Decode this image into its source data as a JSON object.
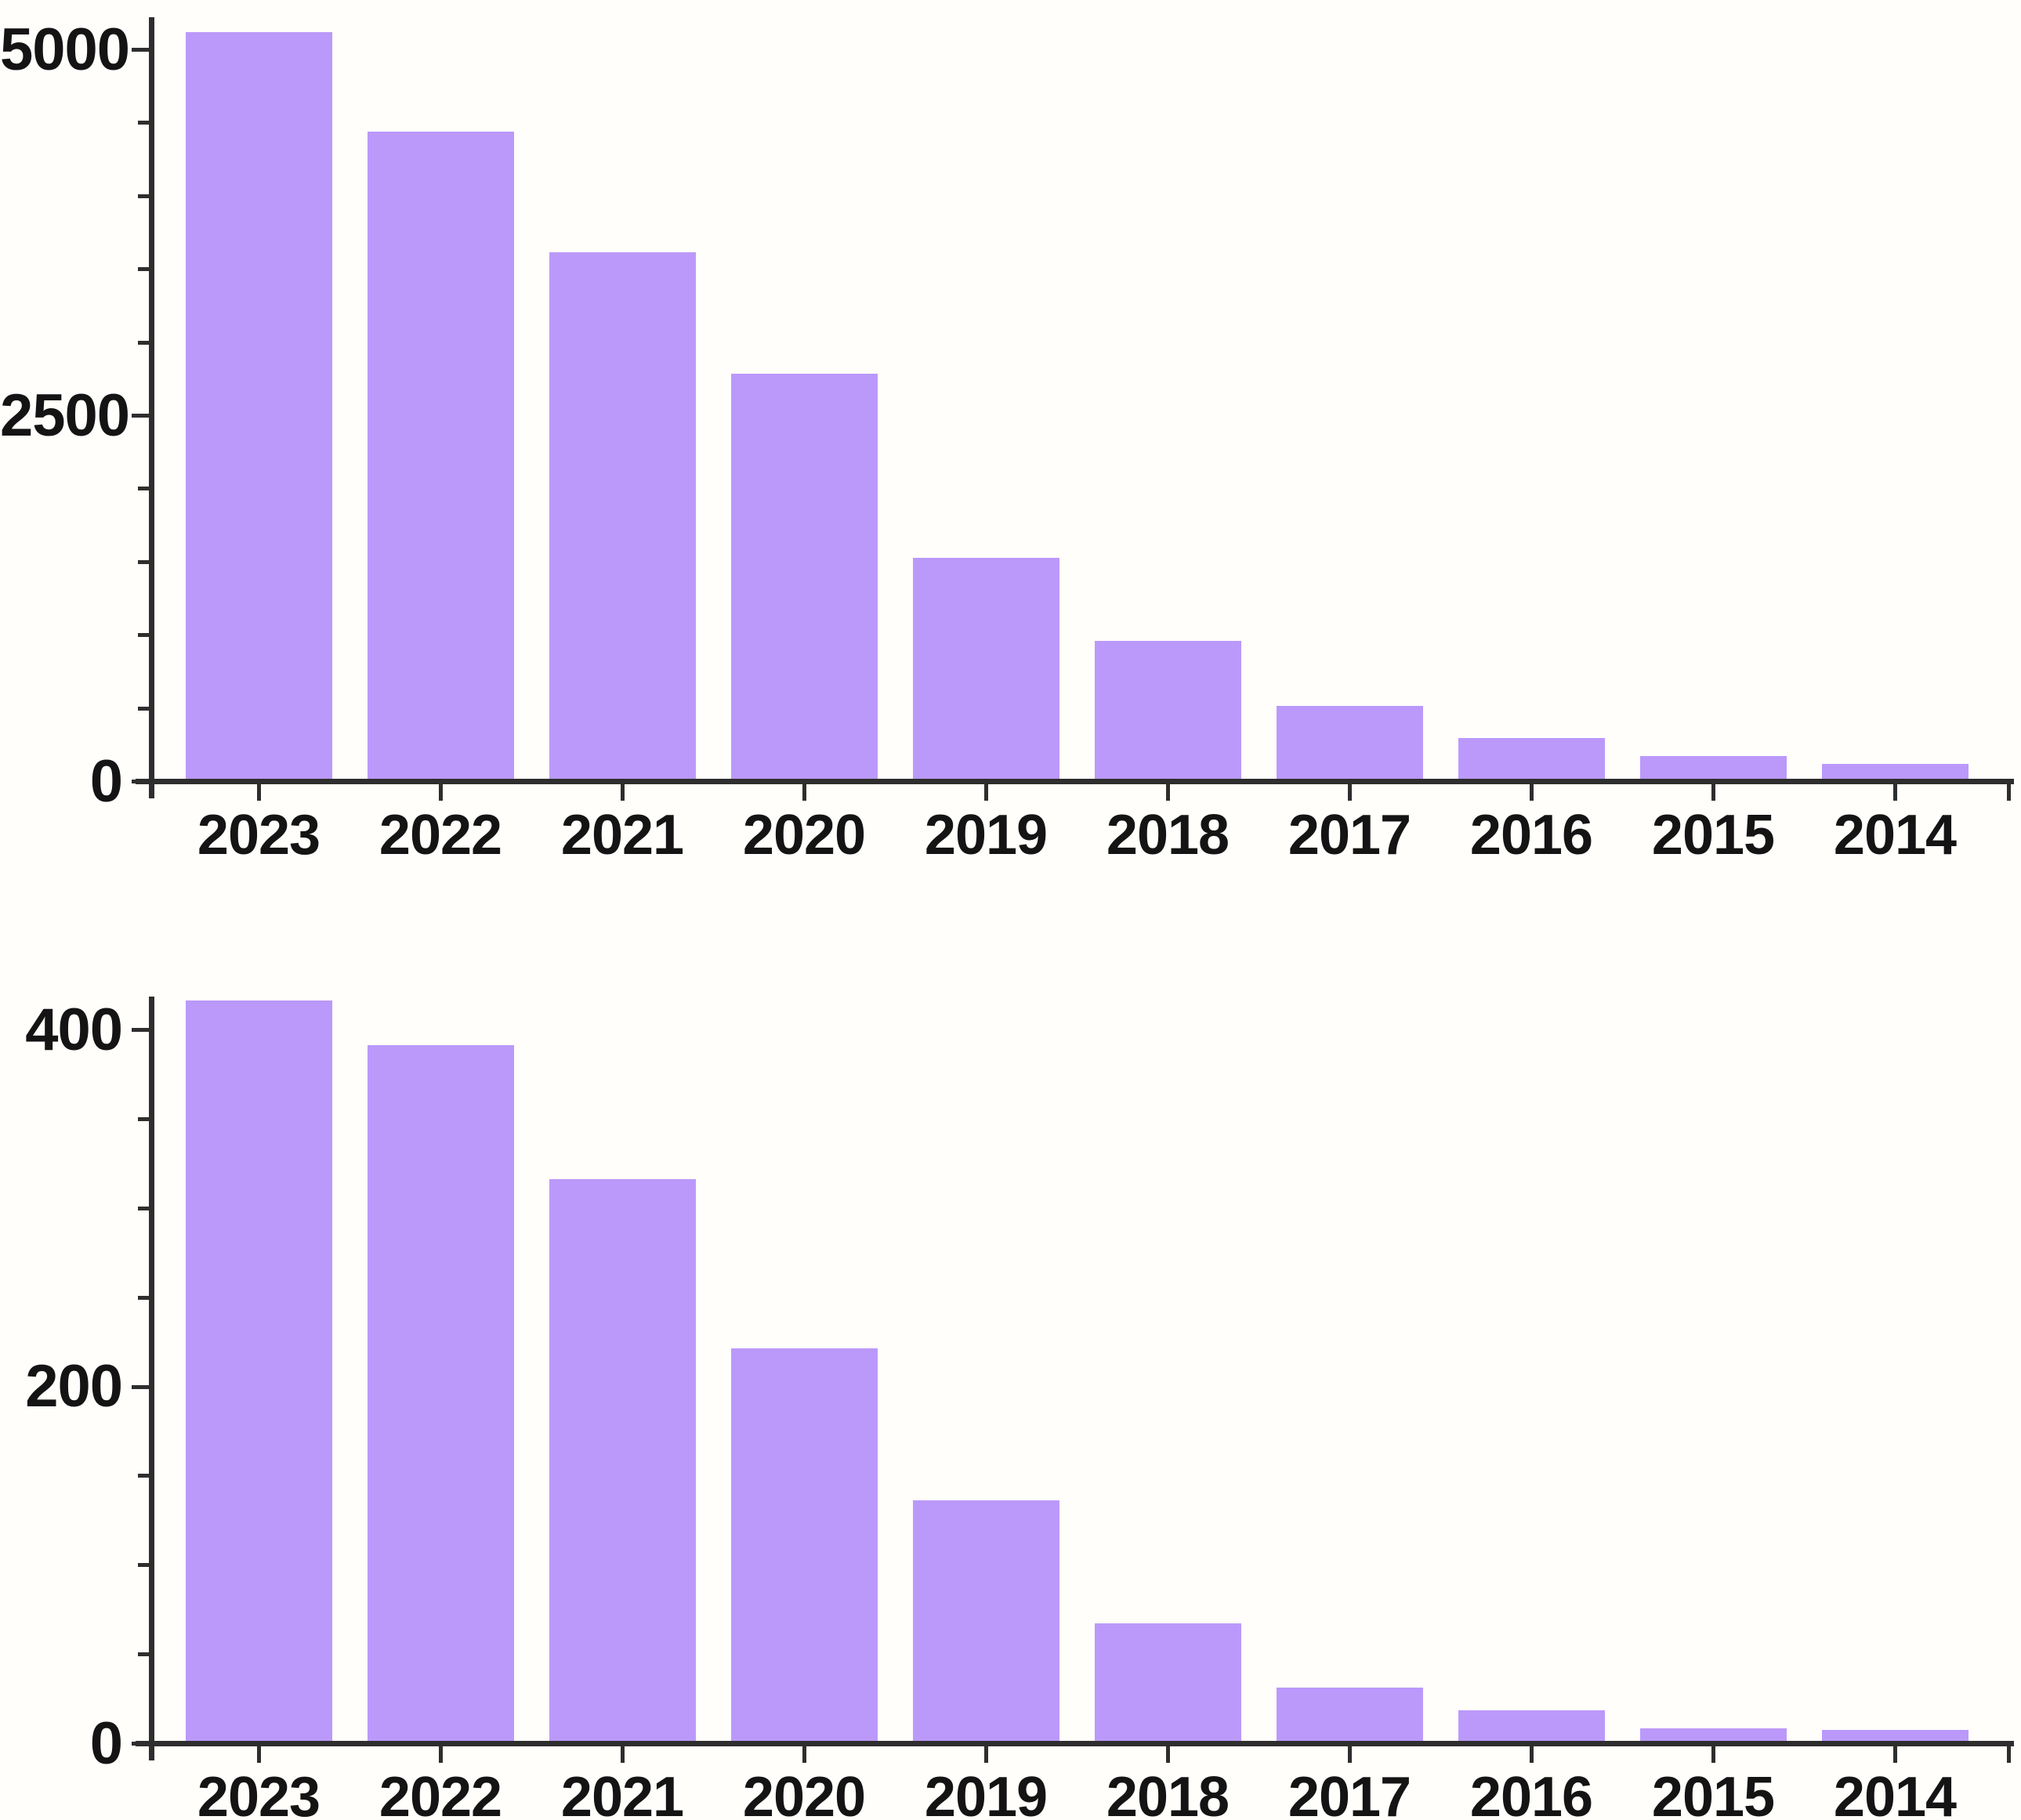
{
  "figure": {
    "background_color": "#fffefb",
    "bar_color": "#bb99fa",
    "axis_color": "#2e2e2e",
    "text_color": "#141414",
    "panels": [
      "top-bar-chart",
      "bottom-bar-chart"
    ]
  },
  "chart_data": [
    {
      "type": "bar",
      "title": "",
      "xlabel": "",
      "ylabel": "",
      "categories": [
        "2023",
        "2022",
        "2021",
        "2020",
        "2019",
        "2018",
        "2017",
        "2016",
        "2015",
        "2014"
      ],
      "values": [
        5100,
        4420,
        3600,
        2770,
        1510,
        940,
        500,
        280,
        155,
        100
      ],
      "ylim": [
        0,
        5300
      ],
      "yticks_major": [
        0,
        2500,
        5000
      ],
      "ytick_labels": [
        "0",
        "2500",
        "5000"
      ],
      "ytick_minor_step": 500,
      "grid": false,
      "legend": "none",
      "bar_color": "#bb99fa"
    },
    {
      "type": "bar",
      "title": "",
      "xlabel": "",
      "ylabel": "",
      "categories": [
        "2023",
        "2022",
        "2021",
        "2020",
        "2019",
        "2018",
        "2017",
        "2016",
        "2015",
        "2014"
      ],
      "values": [
        415,
        390,
        315,
        220,
        135,
        66,
        30,
        17,
        7,
        6
      ],
      "ylim": [
        0,
        430
      ],
      "yticks_major": [
        0,
        200,
        400
      ],
      "ytick_labels": [
        "0",
        "200",
        "400"
      ],
      "ytick_minor_step": 50,
      "grid": false,
      "legend": "none",
      "bar_color": "#bb99fa"
    }
  ]
}
